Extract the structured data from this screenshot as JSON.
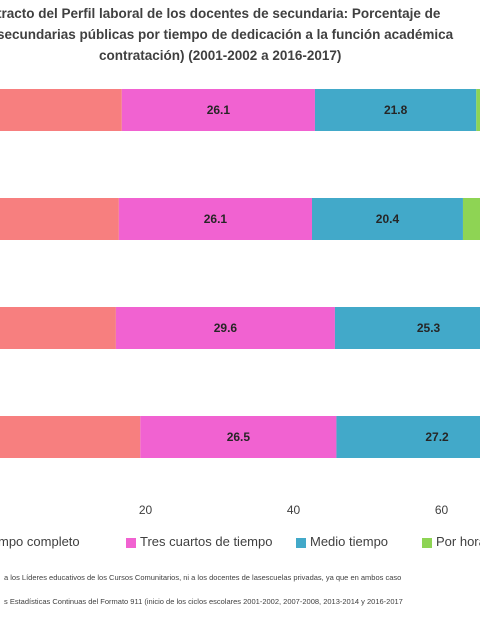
{
  "title_lines": [
    "tracto del Perfil laboral de los docentes de secundaria: Porcentaje de",
    "secundarias públicas por tiempo de dedicación a la función académica",
    "contratación) (2001-2002 a 2016-2017)"
  ],
  "chart_data": {
    "type": "bar",
    "orientation": "horizontal",
    "stacked": true,
    "rows": 4,
    "series": [
      {
        "name": "mpo completo",
        "color": "#F77F7F",
        "values": [
          null,
          null,
          null,
          null
        ]
      },
      {
        "name": "Tres cuartos de tiempo",
        "color": "#F162D1",
        "values": [
          26.1,
          26.1,
          29.6,
          26.5
        ]
      },
      {
        "name": "Medio tiempo",
        "color": "#42A9C9",
        "values": [
          21.8,
          20.4,
          25.3,
          27.2
        ]
      },
      {
        "name": "Por hora",
        "color": "#8ED454",
        "values": [
          null,
          null,
          null,
          null
        ]
      }
    ],
    "visible_segment_starts": [
      16.8,
      16.4,
      16.0,
      19.3
    ],
    "x_ticks": [
      20,
      40,
      60
    ],
    "xlim_visible": [
      0,
      80
    ],
    "grid": false,
    "legend_position": "bottom"
  },
  "legend": [
    {
      "label": "mpo completo",
      "color": "#F77F7F"
    },
    {
      "label": "Tres cuartos de tiempo",
      "color": "#F162D1"
    },
    {
      "label": "Medio tiempo",
      "color": "#42A9C9"
    },
    {
      "label": "Por hora",
      "color": "#8ED454"
    }
  ],
  "notes": [
    "a los Líderes educativos de los Cursos Comunitarios, ni a los docentes de lasescuelas privadas, ya que en ambos caso",
    "s Estadísticas Continuas del Formato 911 (inicio de los ciclos escolares 2001-2002, 2007-2008, 2013-2014 y 2016-2017"
  ]
}
